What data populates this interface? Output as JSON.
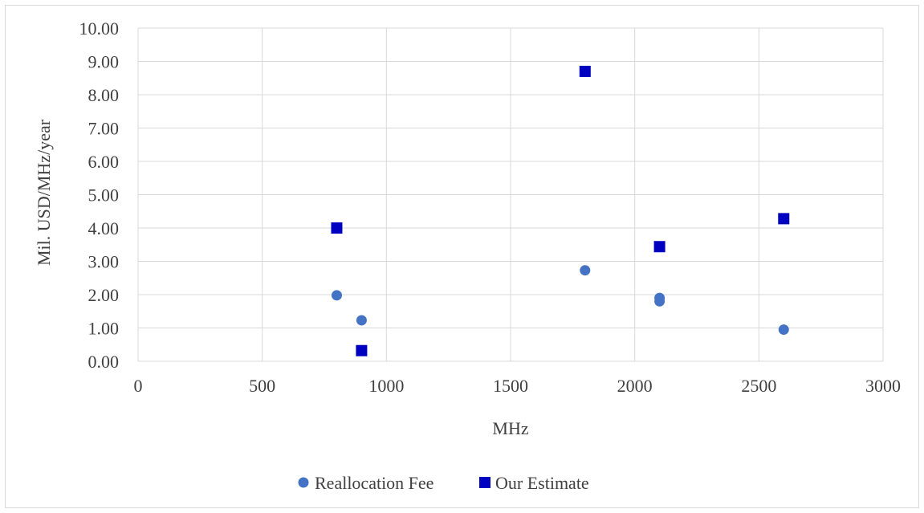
{
  "chart_data": {
    "type": "scatter",
    "title": "",
    "xlabel": "MHz",
    "ylabel": "Mil. USD/MHz/year",
    "xlim": [
      0,
      3000
    ],
    "ylim": [
      0,
      10
    ],
    "x_ticks": [
      0,
      500,
      1000,
      1500,
      2000,
      2500,
      3000
    ],
    "x_tick_labels": [
      "0",
      "500",
      "1000",
      "1500",
      "2000",
      "2500",
      "3000"
    ],
    "y_ticks": [
      0,
      1,
      2,
      3,
      4,
      5,
      6,
      7,
      8,
      9,
      10
    ],
    "y_tick_labels": [
      "0.00",
      "1.00",
      "2.00",
      "3.00",
      "4.00",
      "5.00",
      "6.00",
      "7.00",
      "8.00",
      "9.00",
      "10.00"
    ],
    "grid": true,
    "legend_position": "bottom",
    "series": [
      {
        "name": "Reallocation Fee",
        "marker": "circle",
        "color": "#4472C4",
        "points": [
          {
            "x": 800,
            "y": 1.98
          },
          {
            "x": 900,
            "y": 1.23
          },
          {
            "x": 1800,
            "y": 2.73
          },
          {
            "x": 2100,
            "y": 1.9
          },
          {
            "x": 2100,
            "y": 1.8
          },
          {
            "x": 2600,
            "y": 0.95
          }
        ]
      },
      {
        "name": "Our Estimate",
        "marker": "square",
        "color": "#0000C0",
        "points": [
          {
            "x": 800,
            "y": 4.0
          },
          {
            "x": 900,
            "y": 0.32
          },
          {
            "x": 1800,
            "y": 8.7
          },
          {
            "x": 2100,
            "y": 3.44
          },
          {
            "x": 2600,
            "y": 4.28
          }
        ]
      }
    ]
  }
}
